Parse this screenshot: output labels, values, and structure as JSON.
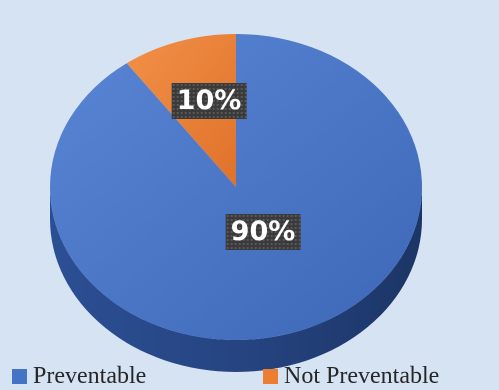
{
  "colors": {
    "background": "#d6e3f3",
    "preventable": "#4472c4",
    "not_preventable": "#ed7d31"
  },
  "chart_data": {
    "type": "pie",
    "style": "3d",
    "slices": [
      {
        "label": "Not Preventable",
        "value": 10,
        "display": "10%",
        "color": "#ed7d31"
      },
      {
        "label": "Preventable",
        "value": 90,
        "display": "90%",
        "color": "#4472c4"
      }
    ],
    "legend": {
      "position": "bottom",
      "entries": [
        "Preventable",
        "Not Preventable"
      ]
    }
  }
}
